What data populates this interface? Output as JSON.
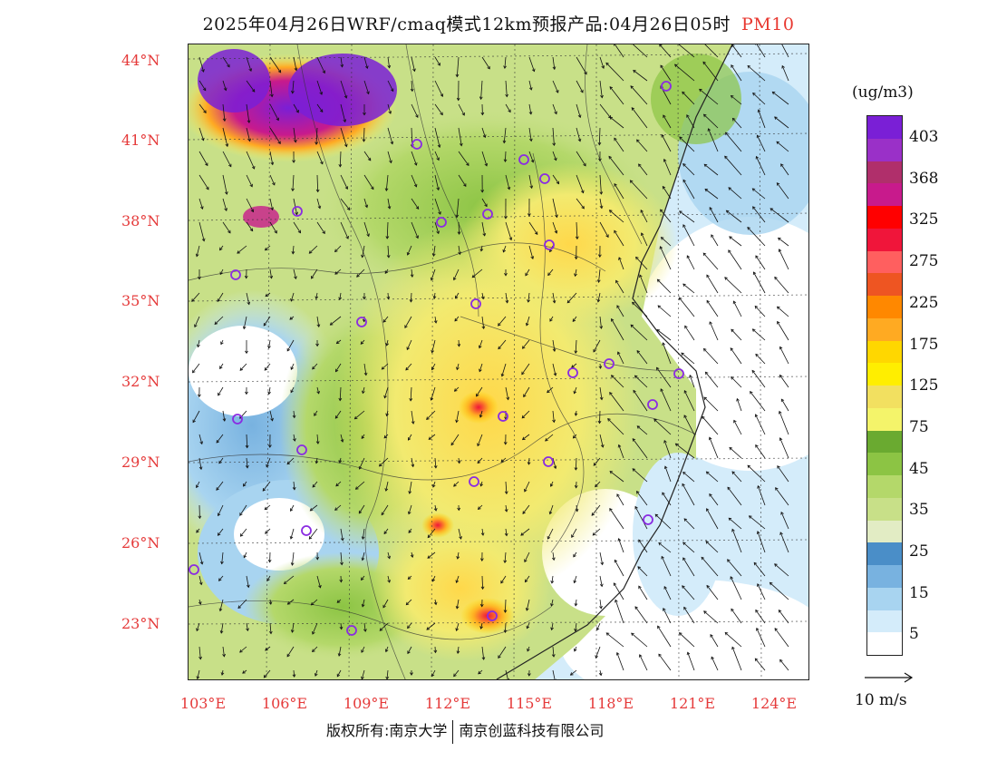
{
  "title": {
    "text": "2025年04月26日WRF/cmaq模式12km预报产品:04月26日05时",
    "pollutant": "PM10"
  },
  "axes": {
    "latitudes": [
      "44°N",
      "41°N",
      "38°N",
      "35°N",
      "32°N",
      "29°N",
      "26°N",
      "23°N"
    ],
    "longitudes": [
      "103°E",
      "106°E",
      "109°E",
      "112°E",
      "115°E",
      "118°E",
      "121°E",
      "124°E"
    ]
  },
  "colorbar": {
    "unit": "(ug/m3)",
    "labels": [
      "403",
      "368",
      "325",
      "275",
      "225",
      "175",
      "125",
      "75",
      "45",
      "35",
      "25",
      "15",
      "5"
    ],
    "colors": [
      "#7a1fd6",
      "#9a30c8",
      "#b02f6b",
      "#c81a8c",
      "#ff0000",
      "#f0153a",
      "#ff5f5f",
      "#ee5522",
      "#ff8800",
      "#ffaa22",
      "#ffd700",
      "#ffee00",
      "#f2e060",
      "#f4f46a",
      "#6aaa30",
      "#8cc444",
      "#b4d86a",
      "#c8e088",
      "#e2ecc4",
      "#4a8ec8",
      "#78b2e0",
      "#a8d4f0",
      "#d4ecfa",
      "#ffffff"
    ]
  },
  "vector_scale": {
    "label": "10 m/s"
  },
  "credit": {
    "left": "版权所有:南京大学",
    "right": "南京创蓝科技有限公司"
  },
  "colors": {
    "axis_label": "#e53a3a",
    "city_marker": "#8a2be2"
  }
}
